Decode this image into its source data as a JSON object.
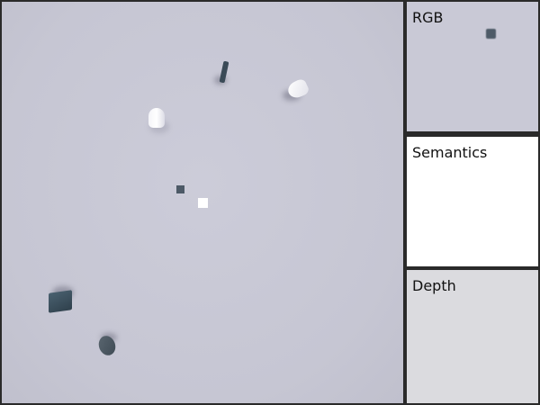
{
  "panels": {
    "rgb": {
      "label": "RGB"
    },
    "semantics": {
      "label": "Semantics"
    },
    "depth": {
      "label": "Depth"
    }
  },
  "colors": {
    "background": "#c6c6d3",
    "frame": "#2a2a2a",
    "semantics_bg": "#ffffff",
    "depth_bg": "#dbdbdf",
    "dark_object": "#3d4f5c",
    "light_object": "#ffffff"
  },
  "scene_objects": [
    "thin-post-object",
    "white-cylinder-object",
    "white-wedge-object",
    "small-dark-cube-object",
    "small-white-cube-object",
    "dark-box-object",
    "dark-capsule-object"
  ]
}
